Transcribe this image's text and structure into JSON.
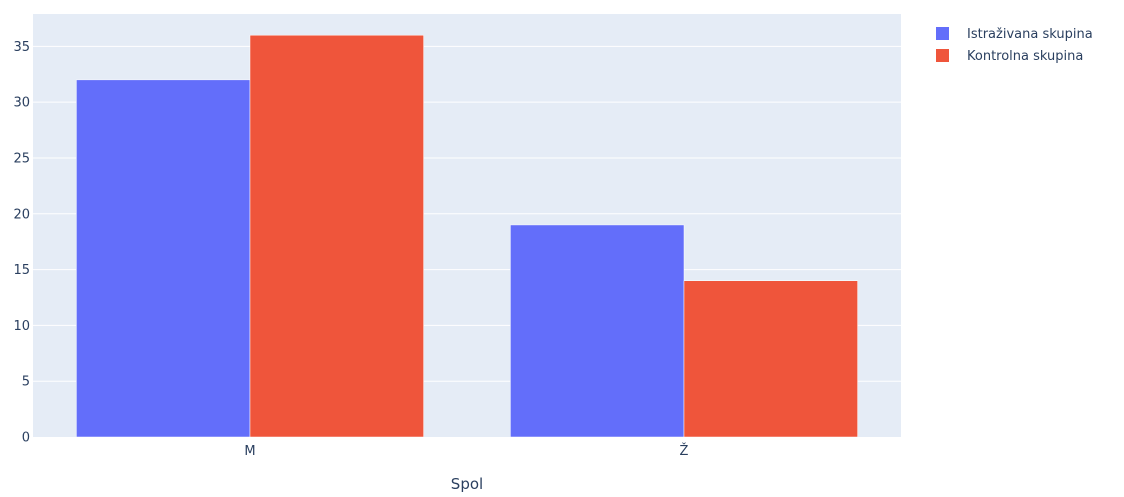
{
  "chart_data": {
    "type": "bar",
    "barmode": "group",
    "categories": [
      "M",
      "Ž"
    ],
    "series": [
      {
        "name": "Istraživana skupina",
        "values": [
          32,
          19
        ],
        "color": "#636efa"
      },
      {
        "name": "Kontrolna skupina",
        "values": [
          36,
          14
        ],
        "color": "#ef553b"
      }
    ],
    "xlabel": "Spol",
    "ylabel": "",
    "ylim": [
      0,
      37.9
    ],
    "yticks": [
      0,
      5,
      10,
      15,
      20,
      25,
      30,
      35
    ],
    "grid": true,
    "legend_position": "top-right",
    "plot_background": "#e5ecf6",
    "grid_color": "#ffffff",
    "text_color": "#2a3f5f"
  }
}
